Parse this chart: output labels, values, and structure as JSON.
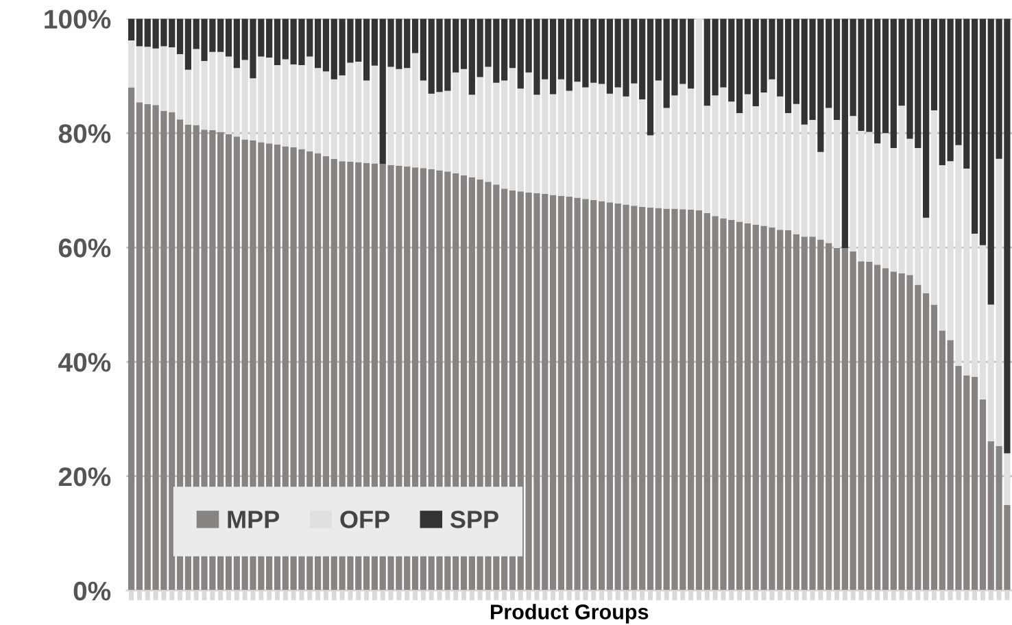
{
  "chart_data": {
    "type": "bar",
    "stacked": true,
    "xlabel": "Product Groups",
    "categories": [
      null,
      null,
      null,
      null,
      null,
      null,
      null,
      null,
      null,
      null,
      null,
      null,
      null,
      null,
      null,
      null,
      null,
      null,
      null,
      null,
      null,
      null,
      null,
      null,
      null,
      null,
      null,
      null,
      null,
      null,
      null,
      null,
      null,
      null,
      null,
      null,
      null,
      null,
      null,
      null,
      null,
      null,
      null,
      null,
      null,
      null,
      null,
      null,
      null,
      null,
      null,
      null,
      null,
      null,
      null,
      null,
      null,
      null,
      null,
      null,
      null,
      null,
      null,
      null,
      null,
      null,
      null,
      null,
      null,
      null,
      null,
      null,
      null,
      null,
      null,
      null,
      null,
      null,
      null,
      null,
      null,
      null,
      null,
      null,
      null,
      null,
      null,
      null,
      null,
      null,
      null,
      null,
      null,
      null,
      null,
      null,
      null,
      null,
      null,
      null,
      null,
      null,
      null,
      null,
      null,
      null,
      null,
      null,
      null
    ],
    "series": [
      {
        "name": "MPP",
        "color": "#878381",
        "values": [
          88.0,
          85.4,
          85.1,
          84.9,
          83.9,
          83.7,
          82.4,
          81.5,
          81.4,
          80.6,
          80.5,
          80.2,
          79.8,
          79.4,
          78.9,
          78.7,
          78.4,
          78.2,
          78.0,
          77.7,
          77.5,
          77.2,
          76.8,
          76.5,
          76.0,
          75.5,
          75.1,
          75.0,
          74.9,
          74.8,
          74.7,
          74.6,
          74.4,
          74.3,
          74.2,
          74.0,
          73.9,
          73.7,
          73.5,
          73.3,
          73.0,
          72.6,
          72.3,
          71.9,
          71.5,
          71.0,
          70.3,
          70.0,
          69.8,
          69.6,
          69.5,
          69.4,
          69.2,
          69.0,
          68.9,
          68.7,
          68.5,
          68.3,
          68.1,
          67.9,
          67.7,
          67.5,
          67.3,
          67.1,
          67.0,
          66.9,
          66.8,
          66.8,
          66.7,
          66.6,
          66.5,
          66.0,
          65.5,
          65.1,
          64.8,
          64.5,
          64.2,
          64.0,
          63.8,
          63.5,
          63.1,
          63.0,
          62.3,
          61.9,
          61.9,
          61.4,
          60.8,
          59.9,
          59.9,
          59.3,
          57.6,
          57.5,
          57.0,
          56.4,
          55.8,
          55.5,
          55.2,
          53.5,
          52.0,
          50.0,
          45.5,
          43.8,
          39.3,
          37.6,
          37.4,
          33.4,
          26.1,
          25.3,
          15.0
        ]
      },
      {
        "name": "OFP",
        "color": "#e0e0e0",
        "values": [
          8.2,
          9.8,
          10.0,
          9.9,
          11.3,
          11.3,
          11.4,
          9.6,
          13.3,
          12.0,
          13.7,
          14.0,
          13.6,
          12.0,
          13.9,
          10.9,
          15.0,
          15.0,
          13.9,
          15.2,
          14.5,
          14.7,
          16.6,
          14.9,
          14.8,
          13.9,
          15.0,
          17.3,
          17.6,
          14.4,
          17.1,
          0,
          17.2,
          16.9,
          17.2,
          20.0,
          15.3,
          13.2,
          13.7,
          14.1,
          17.6,
          18.6,
          14.4,
          17.9,
          20.1,
          17.8,
          18.9,
          21.4,
          18.0,
          21.0,
          17.2,
          20.0,
          17.6,
          20.4,
          18.5,
          20.3,
          19.5,
          20.5,
          20.5,
          19.0,
          20.3,
          18.9,
          21.4,
          18.8,
          12.6,
          22.3,
          17.6,
          19.8,
          21.9,
          21.2,
          33.5,
          18.8,
          21.1,
          22.9,
          20.7,
          19.0,
          22.6,
          20.7,
          23.3,
          25.9,
          23.3,
          20.5,
          22.8,
          19.6,
          20.4,
          15.3,
          23.6,
          22.4,
          0,
          23.7,
          22.8,
          22.7,
          21.2,
          23.6,
          21.6,
          29.3,
          23.8,
          23.9,
          13.2,
          34.0,
          28.9,
          31.3,
          38.6,
          36.2,
          25.0,
          27.0,
          23.9,
          50.2,
          9.0
        ]
      },
      {
        "name": "SPP",
        "color": "#333333",
        "values": [
          3.8,
          4.8,
          4.9,
          5.2,
          4.8,
          5.0,
          6.2,
          8.9,
          5.3,
          7.4,
          5.8,
          5.8,
          6.6,
          8.6,
          7.2,
          10.4,
          6.6,
          6.8,
          8.1,
          7.1,
          8.0,
          8.1,
          6.6,
          8.6,
          9.2,
          10.6,
          9.9,
          7.7,
          7.5,
          10.8,
          8.2,
          25.4,
          8.4,
          8.8,
          8.6,
          6.0,
          10.8,
          13.1,
          12.8,
          12.6,
          9.4,
          8.8,
          13.3,
          10.2,
          8.4,
          11.2,
          10.8,
          8.6,
          12.2,
          9.4,
          13.3,
          10.6,
          13.2,
          10.6,
          12.6,
          11.0,
          12.0,
          11.2,
          11.4,
          13.1,
          12.0,
          13.6,
          11.3,
          14.1,
          20.4,
          10.8,
          15.6,
          13.4,
          11.4,
          12.2,
          0,
          15.2,
          13.4,
          12.0,
          14.5,
          16.5,
          13.2,
          15.3,
          12.9,
          10.6,
          13.6,
          16.5,
          14.9,
          18.5,
          17.7,
          23.3,
          15.6,
          17.7,
          40.1,
          17.0,
          19.6,
          19.8,
          21.8,
          20.0,
          22.6,
          15.2,
          21.0,
          22.6,
          34.8,
          16.0,
          25.6,
          24.9,
          22.1,
          26.2,
          37.6,
          39.6,
          50.0,
          24.5,
          76.0
        ]
      }
    ],
    "ylim": [
      0,
      100
    ],
    "yticks": [
      {
        "value": 0,
        "label": "0%"
      },
      {
        "value": 20,
        "label": "20%"
      },
      {
        "value": 40,
        "label": "40%"
      },
      {
        "value": 60,
        "label": "60%"
      },
      {
        "value": 80,
        "label": "80%"
      },
      {
        "value": 100,
        "label": "100%"
      }
    ],
    "grid": "y",
    "legend": "bottom left"
  }
}
